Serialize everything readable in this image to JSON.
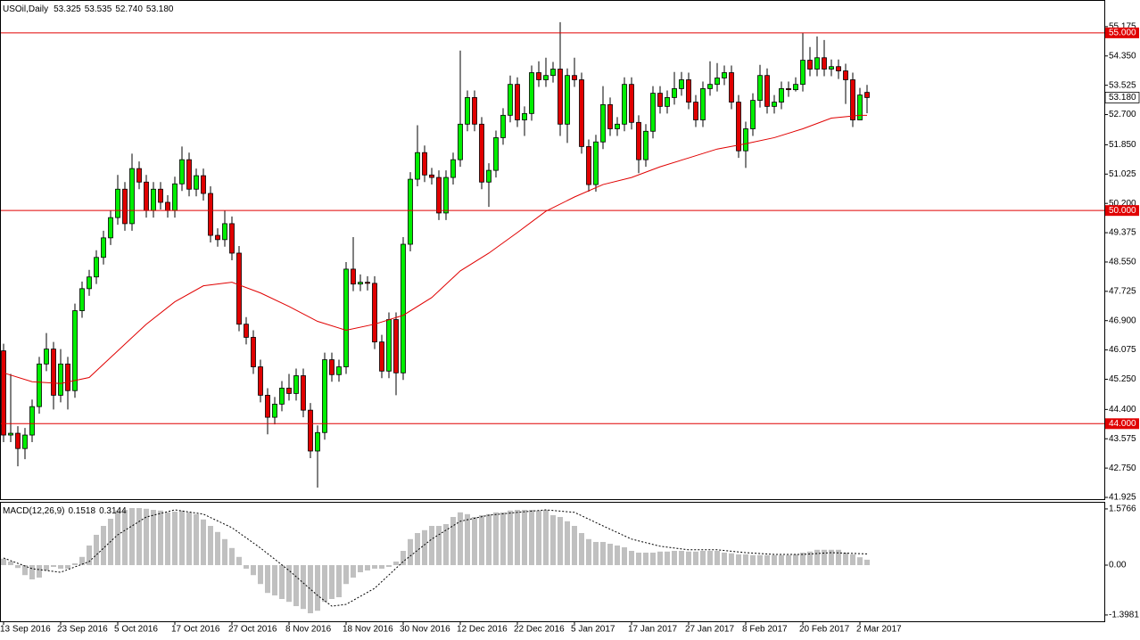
{
  "chart_data": [
    {
      "type": "candlestick",
      "title": "USOil,Daily",
      "header_values": [
        "53.325",
        "53.535",
        "52.740",
        "53.180"
      ],
      "categories": [
        "13 Sep 2016",
        null,
        null,
        null,
        null,
        null,
        null,
        null,
        "23 Sep 2016",
        null,
        null,
        null,
        null,
        null,
        null,
        null,
        "5 Oct 2016",
        null,
        null,
        null,
        null,
        null,
        null,
        null,
        "17 Oct 2016",
        null,
        null,
        null,
        null,
        null,
        null,
        null,
        "27 Oct 2016",
        null,
        null,
        null,
        null,
        null,
        null,
        null,
        "8 Nov 2016",
        null,
        null,
        null,
        null,
        null,
        null,
        null,
        "18 Nov 2016",
        null,
        null,
        null,
        null,
        null,
        null,
        null,
        "30 Nov 2016",
        null,
        null,
        null,
        null,
        null,
        null,
        null,
        "12 Dec 2016",
        null,
        null,
        null,
        null,
        null,
        null,
        null,
        "22 Dec 2016",
        null,
        null,
        null,
        null,
        null,
        null,
        null,
        "5 Jan 2017",
        null,
        null,
        null,
        null,
        null,
        null,
        null,
        "17 Jan 2017",
        null,
        null,
        null,
        null,
        null,
        null,
        null,
        "27 Jan 2017",
        null,
        null,
        null,
        null,
        null,
        null,
        null,
        "8 Feb 2017",
        null,
        null,
        null,
        null,
        null,
        null,
        null,
        "20 Feb 2017",
        null,
        null,
        null,
        null,
        null,
        null,
        null,
        "2 Mar 2017",
        null
      ],
      "open": [
        46.05,
        43.68,
        43.73,
        43.3,
        43.68,
        44.48,
        45.68,
        46.1,
        44.8,
        45.68,
        44.93,
        47.18,
        47.8,
        48.13,
        48.68,
        49.23,
        49.8,
        50.6,
        49.63,
        51.18,
        50.8,
        50.0,
        50.6,
        50.23,
        50.0,
        50.75,
        51.43,
        50.6,
        50.98,
        50.48,
        49.3,
        49.18,
        49.63,
        48.8,
        46.8,
        46.43,
        45.6,
        44.8,
        44.18,
        44.55,
        45.0,
        44.85,
        45.35,
        44.38,
        43.23,
        43.75,
        45.8,
        45.38,
        45.6,
        48.35,
        47.93,
        47.98,
        47.95,
        46.3,
        45.48,
        46.93,
        45.43,
        49.05,
        50.88,
        51.63,
        51.0,
        50.93,
        49.93,
        50.93,
        51.43,
        52.43,
        53.18,
        52.43,
        50.8,
        51.13,
        52.05,
        52.68,
        53.55,
        52.55,
        52.73,
        53.88,
        53.68,
        53.8,
        53.98,
        52.43,
        53.8,
        53.68,
        51.8,
        50.73,
        51.93,
        52.98,
        52.3,
        52.43,
        53.55,
        52.48,
        51.43,
        52.23,
        53.3,
        52.93,
        53.18,
        53.43,
        53.68,
        53.05,
        52.55,
        53.43,
        53.55,
        53.73,
        53.88,
        53.05,
        51.68,
        52.3,
        53.1,
        53.8,
        52.93,
        53.05,
        53.43,
        53.4,
        53.55,
        54.23,
        53.98,
        54.3,
        53.98,
        54.05,
        53.93,
        53.68,
        52.55,
        53.325
      ],
      "high": [
        46.25,
        45.4,
        43.93,
        43.88,
        44.68,
        45.88,
        46.55,
        46.3,
        46.1,
        45.88,
        47.38,
        48.0,
        48.33,
        48.88,
        49.43,
        50.0,
        51.0,
        50.8,
        51.6,
        51.38,
        51.0,
        50.8,
        50.8,
        50.43,
        50.95,
        51.8,
        51.63,
        51.18,
        51.18,
        50.68,
        49.5,
        50.0,
        49.83,
        49.0,
        47.0,
        46.63,
        45.8,
        45.0,
        44.75,
        45.2,
        45.4,
        45.55,
        45.55,
        44.58,
        43.95,
        46.0,
        46.0,
        45.8,
        48.55,
        49.25,
        48.2,
        48.15,
        48.15,
        46.5,
        47.13,
        47.13,
        49.25,
        51.08,
        52.4,
        51.83,
        51.2,
        51.13,
        51.13,
        51.63,
        54.5,
        53.38,
        53.38,
        52.63,
        51.33,
        52.25,
        52.88,
        53.8,
        53.75,
        52.93,
        54.08,
        54.2,
        54.3,
        54.18,
        55.3,
        54.0,
        54.3,
        53.88,
        52.0,
        52.13,
        53.5,
        53.18,
        52.63,
        53.75,
        53.75,
        52.68,
        52.43,
        53.5,
        53.5,
        53.38,
        53.9,
        53.9,
        53.88,
        53.25,
        53.63,
        54.2,
        54.15,
        54.08,
        54.08,
        53.25,
        52.5,
        53.3,
        54.1,
        54.0,
        53.25,
        53.63,
        53.63,
        53.75,
        55.0,
        54.6,
        54.9,
        54.8,
        54.25,
        54.25,
        54.13,
        53.88,
        53.45,
        53.535
      ],
      "low": [
        43.48,
        43.48,
        42.8,
        43.0,
        43.48,
        44.28,
        45.48,
        44.4,
        44.6,
        44.4,
        44.73,
        46.98,
        47.6,
        47.93,
        48.48,
        49.03,
        49.6,
        49.43,
        49.43,
        50.6,
        49.8,
        49.8,
        50.03,
        49.8,
        49.8,
        50.55,
        50.4,
        50.4,
        50.28,
        49.1,
        48.98,
        48.98,
        48.6,
        46.6,
        46.23,
        45.4,
        44.6,
        43.7,
        43.98,
        44.35,
        44.65,
        44.65,
        44.18,
        43.03,
        42.2,
        43.55,
        45.18,
        45.18,
        45.4,
        47.73,
        47.73,
        47.75,
        46.1,
        45.28,
        45.28,
        44.8,
        45.23,
        48.85,
        50.68,
        50.8,
        50.73,
        49.73,
        49.73,
        50.73,
        51.23,
        52.23,
        52.23,
        50.6,
        50.1,
        50.93,
        51.85,
        52.48,
        52.35,
        52.1,
        52.53,
        53.48,
        53.48,
        53.6,
        52.1,
        51.9,
        53.48,
        51.6,
        50.53,
        50.53,
        51.73,
        52.1,
        52.1,
        52.23,
        52.28,
        51.05,
        51.23,
        52.03,
        52.73,
        52.73,
        52.98,
        53.23,
        52.85,
        52.35,
        52.35,
        53.23,
        53.35,
        53.53,
        52.85,
        51.48,
        51.2,
        52.1,
        52.9,
        52.73,
        52.73,
        52.85,
        53.2,
        53.35,
        53.35,
        53.78,
        53.78,
        53.78,
        53.78,
        53.7,
        53.0,
        52.35,
        52.55,
        52.74
      ],
      "close": [
        43.68,
        43.73,
        43.3,
        43.68,
        44.48,
        45.68,
        46.1,
        44.8,
        45.68,
        44.93,
        47.18,
        47.8,
        48.13,
        48.68,
        49.23,
        49.8,
        50.6,
        49.63,
        51.18,
        50.8,
        50.0,
        50.6,
        50.23,
        50.0,
        50.75,
        51.43,
        50.6,
        50.98,
        50.48,
        49.3,
        49.18,
        49.63,
        48.8,
        46.8,
        46.43,
        45.6,
        44.8,
        44.18,
        44.55,
        45.0,
        44.85,
        45.35,
        44.38,
        43.23,
        43.75,
        45.8,
        45.38,
        45.6,
        48.35,
        47.93,
        47.98,
        47.95,
        46.3,
        45.48,
        46.93,
        45.43,
        49.05,
        50.88,
        51.63,
        51.0,
        50.93,
        49.93,
        50.93,
        51.43,
        52.43,
        53.18,
        52.43,
        50.8,
        51.13,
        52.05,
        52.68,
        53.55,
        52.55,
        52.73,
        53.88,
        53.68,
        53.8,
        53.98,
        52.43,
        53.8,
        53.68,
        51.8,
        50.73,
        51.93,
        52.98,
        52.3,
        52.43,
        53.55,
        52.48,
        51.43,
        52.23,
        53.3,
        52.93,
        53.18,
        53.43,
        53.68,
        53.05,
        52.55,
        53.43,
        53.55,
        53.73,
        53.88,
        53.05,
        51.68,
        52.3,
        53.1,
        53.8,
        52.93,
        53.05,
        53.43,
        53.4,
        53.55,
        54.23,
        53.98,
        54.3,
        53.98,
        54.05,
        53.93,
        53.68,
        52.55,
        53.25,
        53.18
      ],
      "up_color": "#00ee00",
      "down_color": "#e00000",
      "ma": {
        "color": "#e00000",
        "x": [
          0,
          4,
          8,
          12,
          16,
          20,
          24,
          28,
          32,
          36,
          40,
          44,
          48,
          52,
          56,
          60,
          64,
          68,
          72,
          76,
          80,
          84,
          88,
          92,
          96,
          100,
          104,
          108,
          112,
          116,
          120,
          121
        ],
        "values": [
          45.43,
          45.18,
          45.13,
          45.3,
          46.05,
          46.8,
          47.43,
          47.88,
          47.98,
          47.68,
          47.3,
          46.88,
          46.63,
          46.8,
          47.05,
          47.55,
          48.3,
          48.8,
          49.38,
          49.98,
          50.38,
          50.73,
          50.93,
          51.23,
          51.48,
          51.73,
          51.88,
          52.05,
          52.3,
          52.6,
          52.68,
          52.68
        ]
      },
      "levels": [
        {
          "value": 55,
          "label": "55.000"
        },
        {
          "value": 50,
          "label": "50.000"
        },
        {
          "value": 44,
          "label": "44.000"
        }
      ],
      "level_color": "#e00000",
      "last_price": {
        "value": 53.18,
        "label": "53.180"
      },
      "ylim": [
        41.875,
        55.925
      ],
      "yticks": [
        55.175,
        {
          "value": 54.35,
          "label": "54.350"
        },
        53.525,
        {
          "value": 52.7,
          "label": "52.700"
        },
        {
          "value": 51.85,
          "label": "51.850"
        },
        51.025,
        {
          "value": 50.2,
          "label": "50.200"
        },
        49.375,
        {
          "value": 48.55,
          "label": "48.550"
        },
        47.725,
        {
          "value": 46.9,
          "label": "46.900"
        },
        46.075,
        {
          "value": 45.25,
          "label": "45.250"
        },
        {
          "value": 44.4,
          "label": "44.400"
        },
        43.575,
        {
          "value": 42.75,
          "label": "42.750"
        },
        41.925
      ]
    },
    {
      "type": "macd",
      "title": "MACD(12,26,9)",
      "header_values": [
        "0.1518",
        "0.3144"
      ],
      "color": "#c0c0c0",
      "values": [
        0.18,
        0.1,
        -0.08,
        -0.28,
        -0.4,
        -0.35,
        -0.15,
        -0.05,
        -0.1,
        -0.1,
        0.05,
        0.23,
        0.55,
        0.85,
        1.1,
        1.3,
        1.53,
        1.55,
        1.6,
        1.6,
        1.58,
        1.55,
        1.53,
        1.48,
        1.5,
        1.53,
        1.48,
        1.43,
        1.28,
        1.1,
        0.93,
        0.73,
        0.48,
        0.23,
        -0.1,
        -0.28,
        -0.53,
        -0.78,
        -0.85,
        -0.95,
        -1.03,
        -1.15,
        -1.23,
        -1.35,
        -1.28,
        -1.03,
        -0.95,
        -0.9,
        -0.53,
        -0.35,
        -0.2,
        -0.15,
        -0.1,
        -0.1,
        -0.05,
        0.1,
        0.4,
        0.73,
        0.9,
        0.98,
        1.1,
        1.1,
        1.15,
        1.35,
        1.48,
        1.43,
        1.35,
        1.4,
        1.43,
        1.48,
        1.48,
        1.53,
        1.55,
        1.55,
        1.55,
        1.53,
        1.55,
        1.4,
        1.35,
        1.23,
        1.1,
        0.9,
        0.73,
        0.65,
        0.65,
        0.6,
        0.55,
        0.5,
        0.4,
        0.35,
        0.35,
        0.35,
        0.38,
        0.38,
        0.4,
        0.4,
        0.38,
        0.38,
        0.4,
        0.4,
        0.4,
        0.35,
        0.33,
        0.3,
        0.3,
        0.28,
        0.28,
        0.28,
        0.28,
        0.28,
        0.28,
        0.3,
        0.35,
        0.38,
        0.43,
        0.43,
        0.43,
        0.43,
        0.35,
        0.3,
        0.22,
        0.1518
      ],
      "signal": {
        "color": "#000000",
        "x": [
          0,
          4,
          8,
          12,
          16,
          20,
          24,
          28,
          32,
          36,
          40,
          44,
          46,
          48,
          52,
          56,
          60,
          64,
          68,
          72,
          76,
          80,
          84,
          88,
          92,
          96,
          100,
          104,
          108,
          112,
          116,
          121
        ],
        "values": [
          0.2,
          -0.1,
          -0.2,
          0.1,
          0.85,
          1.35,
          1.55,
          1.43,
          1.05,
          0.48,
          -0.15,
          -0.85,
          -1.15,
          -1.1,
          -0.65,
          0.1,
          0.73,
          1.23,
          1.4,
          1.48,
          1.55,
          1.48,
          1.1,
          0.73,
          0.53,
          0.43,
          0.43,
          0.35,
          0.3,
          0.3,
          0.35,
          0.3144
        ]
      },
      "ylim": [
        -1.575,
        1.775
      ],
      "yticks": [
        1.5766,
        {
          "value": 0,
          "label": "0.00"
        },
        -1.3981
      ]
    }
  ]
}
